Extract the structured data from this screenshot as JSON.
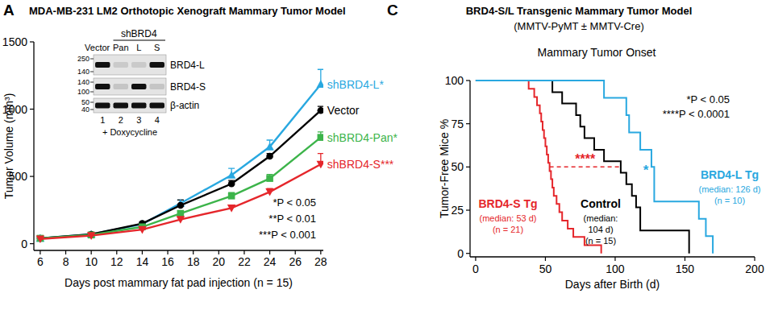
{
  "chart_data": [
    {
      "type": "line",
      "panel_label": "A",
      "title": "MDA-MB-231 LM2 Orthotopic Xenograft Mammary Tumor Model",
      "x_label": "Days post mammary fat pad injection (n = 15)",
      "y_label": "Tumor Volume (mm³)",
      "x": [
        6,
        10,
        14,
        17,
        21,
        24,
        28
      ],
      "xlim": [
        5.5,
        28.2
      ],
      "xticks": [
        6,
        8,
        10,
        12,
        14,
        16,
        18,
        20,
        22,
        24,
        26,
        28
      ],
      "ylim": [
        -50,
        1500
      ],
      "yticks": [
        0,
        500,
        1000,
        1500
      ],
      "series": [
        {
          "name": "shBRD4-L*",
          "color": "#29a8e0",
          "marker": "triangle-up",
          "values": [
            40,
            70,
            145,
            300,
            510,
            720,
            1185
          ],
          "errors": [
            5,
            8,
            12,
            25,
            50,
            50,
            110
          ]
        },
        {
          "name": "Vector",
          "color": "#000000",
          "marker": "circle",
          "values": [
            40,
            70,
            150,
            285,
            445,
            650,
            990
          ],
          "errors": [
            4,
            8,
            10,
            40,
            25,
            20,
            30
          ]
        },
        {
          "name": "shBRD4-Pan*",
          "color": "#3cb44a",
          "marker": "square",
          "values": [
            40,
            65,
            125,
            225,
            355,
            485,
            790
          ],
          "errors": [
            4,
            6,
            10,
            20,
            25,
            30,
            40
          ]
        },
        {
          "name": "shBRD4-S***",
          "color": "#e5262b",
          "marker": "triangle-down",
          "values": [
            35,
            60,
            105,
            180,
            265,
            385,
            590
          ],
          "errors": [
            4,
            6,
            10,
            15,
            20,
            25,
            80
          ]
        }
      ],
      "annotations": [
        "*P < 0.05",
        "**P < 0.01",
        "***P < 0.001"
      ],
      "inset": {
        "group_label": "shBRD4",
        "lanes": [
          "Vector",
          "Pan",
          "L",
          "S"
        ],
        "lane_numbers": [
          1,
          2,
          3,
          4
        ],
        "treatment": "+ Doxycycline",
        "rows": [
          {
            "name": "BRD4-L",
            "markers": [
              250,
              140
            ],
            "intensity": [
              1,
              0.12,
              0.12,
              1
            ]
          },
          {
            "name": "BRD4-S",
            "markers": [
              140,
              100
            ],
            "intensity": [
              1,
              0.15,
              1,
              0.15
            ]
          },
          {
            "name": "β-actin",
            "markers": [
              50,
              40
            ],
            "intensity": [
              1,
              1,
              1,
              1
            ]
          }
        ]
      }
    },
    {
      "type": "step",
      "panel_label": "C",
      "title": "BRD4-S/L Transgenic Mammary Tumor Model",
      "subtitle": "(MMTV-PyMT ± MMTV-Cre)",
      "plot_title": "Mammary Tumor Onset",
      "x_label": "Days after Birth (d)",
      "y_label": "Tumor-Free Mice %",
      "xlim": [
        -4,
        200
      ],
      "xticks": [
        0,
        50,
        100,
        150,
        200
      ],
      "ylim": [
        -2,
        100
      ],
      "yticks": [
        0,
        25,
        50,
        75,
        100
      ],
      "series": [
        {
          "name": "BRD4-S Tg",
          "color": "#e5262b",
          "x": [
            0,
            38,
            42,
            44,
            46,
            47,
            48,
            49,
            50,
            51,
            52,
            53,
            54,
            55,
            56,
            58,
            60,
            62,
            66,
            70,
            78,
            90
          ],
          "values": [
            100,
            95.2,
            90.5,
            85.7,
            81.0,
            76.2,
            71.4,
            66.7,
            61.9,
            57.1,
            52.4,
            47.6,
            42.9,
            38.1,
            33.3,
            28.6,
            23.8,
            19.0,
            14.3,
            9.5,
            4.8,
            0
          ],
          "notes": [
            "(median: 53 d)",
            "(n = 21)"
          ]
        },
        {
          "name": "Control",
          "color": "#000000",
          "x": [
            0,
            55,
            62,
            72,
            75,
            78,
            85,
            92,
            104,
            108,
            112,
            115,
            118,
            153
          ],
          "values": [
            100,
            93.3,
            86.7,
            80,
            73.3,
            66.7,
            60,
            53.3,
            46.7,
            40,
            33.3,
            26.7,
            13.3,
            0
          ],
          "notes": [
            "(median:",
            "104 d)",
            "(n = 15)"
          ]
        },
        {
          "name": "BRD4-L Tg",
          "color": "#29a8e0",
          "x": [
            0,
            92,
            108,
            110,
            118,
            126,
            128,
            160,
            165,
            170
          ],
          "values": [
            100,
            90,
            80,
            70,
            60,
            50,
            30,
            20,
            10,
            0
          ],
          "notes": [
            "(median: 126 d)",
            "(n = 10)"
          ]
        }
      ],
      "annotations": [
        "*P < 0.05",
        "****P < 0.0001"
      ],
      "comparisons": [
        {
          "text": "****",
          "color": "#e5262b",
          "x": [
            53,
            104
          ],
          "y": 50,
          "line_style": "dashed"
        },
        {
          "text": "*",
          "color": "#29a8e0",
          "x": 122,
          "y": 50
        }
      ]
    }
  ]
}
